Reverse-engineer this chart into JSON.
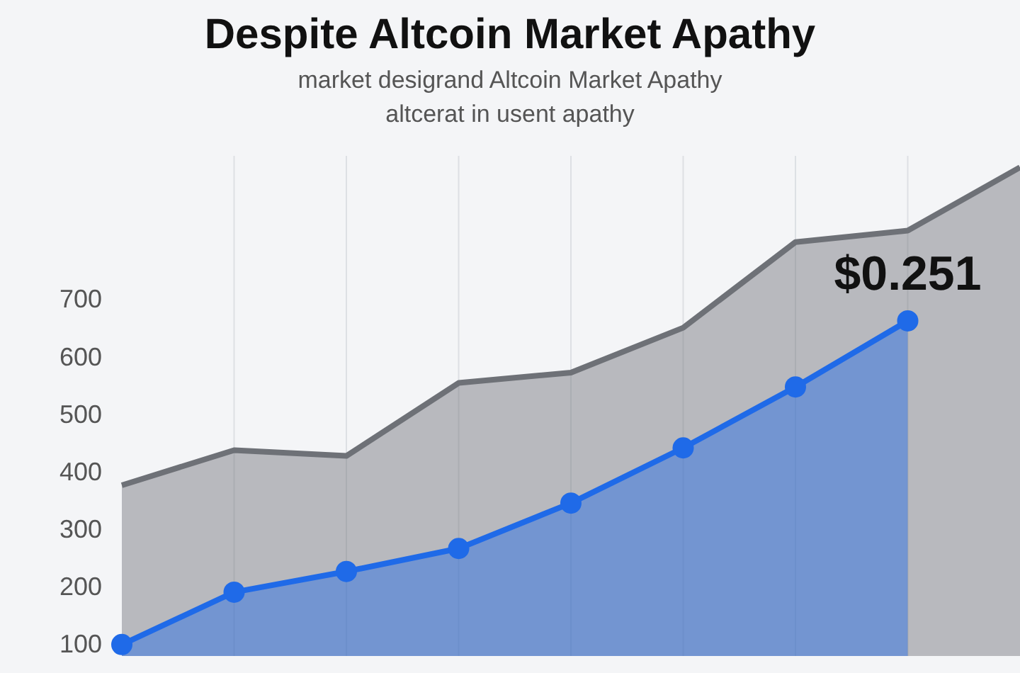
{
  "chart_data": {
    "type": "area",
    "title": "Despite Altcoin Market Apathy",
    "subtitle": "market desigrand Altcoin Market Apathy\naltcerat  in usent apathy",
    "categories": [
      null,
      null,
      null,
      null,
      null,
      null,
      null,
      null,
      null
    ],
    "series": [
      {
        "color": "#6e7177",
        "values": [
          377,
          438,
          428,
          555,
          573,
          651,
          800,
          820,
          930
        ]
      },
      {
        "color": "#1f6ae8",
        "marker": "circle",
        "values": [
          100,
          191,
          227,
          267,
          346,
          442,
          548,
          663,
          null
        ]
      }
    ],
    "ylim": [
      80,
      950
    ],
    "yticks": [
      100,
      200,
      300,
      400,
      500,
      600,
      700
    ],
    "grid": "x",
    "tick_labels": "y",
    "annotations": [
      {
        "text": "$0.251",
        "y": 663
      }
    ]
  }
}
